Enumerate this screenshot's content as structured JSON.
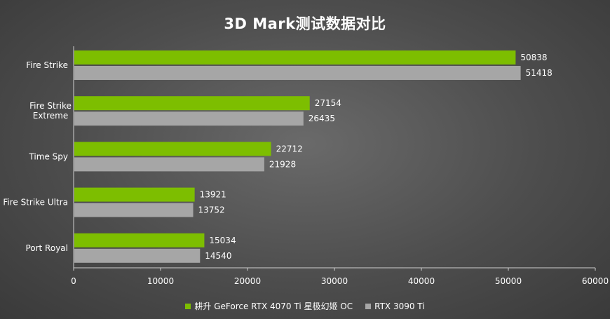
{
  "chart_data": {
    "type": "bar",
    "orientation": "horizontal",
    "title": "3D Mark测试数据对比",
    "categories": [
      "Fire Strike",
      "Fire Strike Extreme",
      "Time Spy",
      "Fire Strike Ultra",
      "Port Royal"
    ],
    "category_lines": [
      [
        "Fire Strike"
      ],
      [
        "Fire Strike",
        "Extreme"
      ],
      [
        "Time Spy"
      ],
      [
        "Fire Strike Ultra"
      ],
      [
        "Port Royal"
      ]
    ],
    "series": [
      {
        "name": "耕升 GeForce RTX 4070 Ti 星极幻姬 OC",
        "color": "#7dbe00",
        "values": [
          50838,
          27154,
          22712,
          13921,
          15034
        ]
      },
      {
        "name": "RTX 3090 Ti",
        "color": "#a6a6a6",
        "values": [
          51418,
          26435,
          21928,
          13752,
          14540
        ]
      }
    ],
    "xlim": [
      0,
      60000
    ],
    "xticks": [
      0,
      10000,
      20000,
      30000,
      40000,
      50000,
      60000
    ],
    "legend_position": "bottom",
    "grid": false
  }
}
